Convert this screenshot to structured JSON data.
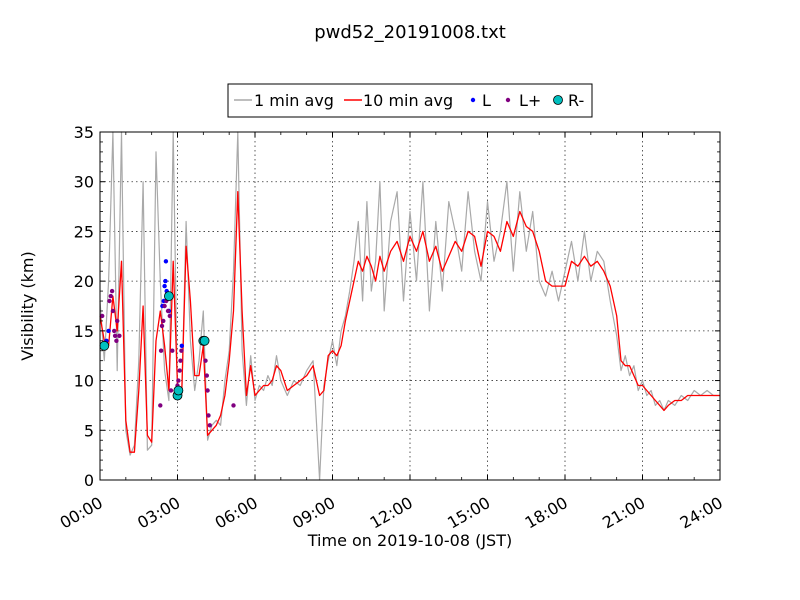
{
  "chart_data": {
    "type": "line",
    "title": "pwd52_20191008.txt",
    "xlabel": "Time on 2019-10-08 (JST)",
    "ylabel": "Visibility (km)",
    "xlim": [
      "00:00",
      "24:00"
    ],
    "ylim": [
      0,
      35
    ],
    "x_ticks": [
      "00:00",
      "03:00",
      "06:00",
      "09:00",
      "12:00",
      "15:00",
      "18:00",
      "21:00",
      "24:00"
    ],
    "y_ticks": [
      "0",
      "5",
      "10",
      "15",
      "20",
      "25",
      "30",
      "35"
    ],
    "grid": true,
    "legend_position": "top-center",
    "legend": [
      {
        "label": "1 min avg",
        "color": "#a9a9a9",
        "marker": "line"
      },
      {
        "label": "10 min avg",
        "color": "#ff0000",
        "marker": "line"
      },
      {
        "label": "L",
        "color": "#0000ff",
        "marker": "dot"
      },
      {
        "label": "L+",
        "color": "#800080",
        "marker": "dot"
      },
      {
        "label": "R-",
        "color": "#00bfbf",
        "marker": "circle"
      }
    ],
    "series": [
      {
        "name": "10 min avg",
        "color": "#ff0000",
        "x": [
          "00:00",
          "00:10",
          "00:20",
          "00:30",
          "00:40",
          "00:50",
          "01:00",
          "01:10",
          "01:20",
          "01:30",
          "01:40",
          "01:50",
          "02:00",
          "02:10",
          "02:20",
          "02:30",
          "02:40",
          "02:50",
          "03:00",
          "03:10",
          "03:20",
          "03:30",
          "03:40",
          "03:50",
          "04:00",
          "04:10",
          "04:20",
          "04:30",
          "04:40",
          "04:50",
          "05:00",
          "05:10",
          "05:20",
          "05:30",
          "05:40",
          "05:50",
          "06:00",
          "06:10",
          "06:20",
          "06:30",
          "06:40",
          "06:50",
          "07:00",
          "07:15",
          "07:30",
          "07:45",
          "08:00",
          "08:15",
          "08:30",
          "08:40",
          "08:50",
          "09:00",
          "09:10",
          "09:20",
          "09:30",
          "09:40",
          "09:50",
          "10:00",
          "10:10",
          "10:20",
          "10:30",
          "10:40",
          "10:50",
          "11:00",
          "11:15",
          "11:30",
          "11:45",
          "12:00",
          "12:15",
          "12:30",
          "12:45",
          "13:00",
          "13:15",
          "13:30",
          "13:45",
          "14:00",
          "14:15",
          "14:30",
          "14:45",
          "15:00",
          "15:15",
          "15:30",
          "15:45",
          "16:00",
          "16:15",
          "16:30",
          "16:45",
          "17:00",
          "17:15",
          "17:30",
          "17:45",
          "18:00",
          "18:15",
          "18:30",
          "18:45",
          "19:00",
          "19:15",
          "19:30",
          "19:45",
          "20:00",
          "20:10",
          "20:20",
          "20:30",
          "20:40",
          "20:50",
          "21:00",
          "21:10",
          "21:20",
          "21:30",
          "21:40",
          "21:50",
          "22:00",
          "22:15",
          "22:30",
          "22:45",
          "23:00",
          "23:15",
          "23:30",
          "23:45",
          "24:00"
        ],
        "y": [
          16.5,
          14.0,
          13.5,
          18.5,
          15.0,
          22.0,
          6.0,
          2.8,
          2.8,
          9.0,
          17.5,
          4.5,
          3.8,
          14.0,
          17.0,
          13.5,
          9.0,
          22.0,
          9.5,
          9.0,
          23.5,
          18.0,
          10.5,
          10.5,
          13.5,
          4.5,
          5.0,
          5.5,
          6.5,
          8.5,
          12.0,
          17.0,
          29.0,
          17.0,
          8.5,
          11.5,
          8.5,
          9.0,
          9.5,
          9.5,
          10.0,
          11.5,
          11.0,
          9.0,
          9.5,
          10.0,
          10.5,
          11.5,
          8.5,
          9.0,
          12.5,
          13.0,
          12.5,
          13.5,
          16.0,
          18.0,
          20.0,
          22.0,
          21.0,
          22.5,
          21.5,
          20.0,
          22.5,
          21.0,
          23.0,
          24.0,
          22.0,
          24.5,
          23.0,
          25.0,
          22.0,
          23.5,
          21.0,
          22.5,
          24.0,
          23.0,
          25.0,
          24.5,
          21.5,
          25.0,
          24.5,
          23.0,
          26.0,
          24.5,
          27.0,
          25.5,
          25.0,
          23.0,
          20.0,
          19.5,
          19.5,
          19.5,
          22.0,
          21.5,
          22.5,
          21.5,
          22.0,
          21.0,
          19.5,
          16.5,
          12.0,
          11.5,
          11.5,
          10.5,
          9.5,
          9.5,
          9.0,
          8.5,
          8.0,
          7.5,
          7.0,
          7.5,
          8.0,
          8.0,
          8.5,
          8.5,
          8.5,
          8.5,
          8.5,
          8.5
        ]
      },
      {
        "name": "1 min avg",
        "color": "#a9a9a9",
        "x": [
          "00:00",
          "00:10",
          "00:20",
          "00:30",
          "00:40",
          "00:50",
          "01:00",
          "01:10",
          "01:20",
          "01:30",
          "01:40",
          "01:50",
          "02:00",
          "02:10",
          "02:20",
          "02:30",
          "02:40",
          "02:50",
          "03:00",
          "03:10",
          "03:20",
          "03:30",
          "03:40",
          "03:50",
          "04:00",
          "04:10",
          "04:20",
          "04:30",
          "04:40",
          "04:50",
          "05:00",
          "05:10",
          "05:20",
          "05:30",
          "05:40",
          "05:50",
          "06:00",
          "06:10",
          "06:20",
          "06:30",
          "06:40",
          "06:50",
          "07:00",
          "07:15",
          "07:30",
          "07:45",
          "08:00",
          "08:15",
          "08:30",
          "08:40",
          "08:50",
          "09:00",
          "09:10",
          "09:20",
          "09:30",
          "09:40",
          "09:50",
          "10:00",
          "10:10",
          "10:20",
          "10:30",
          "10:40",
          "10:50",
          "11:00",
          "11:15",
          "11:30",
          "11:45",
          "12:00",
          "12:15",
          "12:30",
          "12:45",
          "13:00",
          "13:15",
          "13:30",
          "13:45",
          "14:00",
          "14:15",
          "14:30",
          "14:45",
          "15:00",
          "15:15",
          "15:30",
          "15:45",
          "16:00",
          "16:15",
          "16:30",
          "16:45",
          "17:00",
          "17:15",
          "17:30",
          "17:45",
          "18:00",
          "18:15",
          "18:30",
          "18:45",
          "19:00",
          "19:15",
          "19:30",
          "19:45",
          "20:00",
          "20:10",
          "20:20",
          "20:30",
          "20:40",
          "20:50",
          "21:00",
          "21:10",
          "21:20",
          "21:30",
          "21:40",
          "21:50",
          "22:00",
          "22:15",
          "22:30",
          "22:45",
          "23:00",
          "23:15",
          "23:30",
          "23:45",
          "24:00"
        ],
        "y": [
          18.0,
          12.0,
          20.0,
          35.0,
          11.0,
          35.0,
          5.0,
          2.5,
          3.5,
          12.0,
          30.0,
          3.0,
          3.5,
          33.0,
          20.0,
          11.0,
          8.0,
          35.0,
          8.0,
          8.5,
          26.0,
          14.0,
          9.0,
          12.0,
          17.0,
          4.0,
          5.5,
          6.0,
          5.5,
          10.0,
          13.0,
          21.0,
          35.0,
          13.0,
          7.5,
          12.5,
          8.0,
          9.5,
          9.0,
          10.5,
          9.5,
          12.5,
          10.0,
          8.5,
          10.0,
          9.5,
          11.0,
          12.0,
          0.0,
          9.5,
          12.0,
          14.0,
          11.5,
          15.0,
          16.5,
          19.0,
          22.0,
          26.0,
          18.0,
          28.0,
          19.0,
          22.0,
          30.0,
          17.0,
          26.0,
          29.0,
          18.0,
          27.0,
          20.0,
          30.0,
          17.0,
          26.0,
          19.0,
          28.0,
          25.0,
          21.0,
          29.0,
          23.0,
          20.0,
          28.0,
          22.0,
          25.0,
          30.0,
          21.0,
          29.0,
          23.0,
          27.0,
          20.0,
          18.5,
          21.0,
          18.0,
          21.0,
          24.0,
          20.0,
          25.0,
          20.0,
          23.0,
          22.0,
          18.0,
          14.5,
          11.0,
          12.5,
          10.5,
          11.5,
          9.0,
          10.0,
          8.5,
          9.0,
          7.5,
          8.0,
          7.0,
          8.0,
          7.5,
          8.5,
          8.0,
          9.0,
          8.5,
          9.0,
          8.5,
          8.5
        ]
      }
    ],
    "markers": [
      {
        "name": "L",
        "color": "#0000ff",
        "x": [
          "00:15",
          "00:20",
          "02:25",
          "02:28",
          "02:30",
          "02:32",
          "02:33",
          "02:35",
          "02:37",
          "02:40",
          "03:10"
        ],
        "y": [
          14.0,
          15.0,
          17.5,
          18.0,
          19.5,
          20.0,
          22.0,
          19.0,
          18.5,
          17.0,
          13.5
        ]
      },
      {
        "name": "L+",
        "color": "#800080",
        "x": [
          "00:05",
          "00:15",
          "00:22",
          "00:25",
          "00:28",
          "00:30",
          "00:33",
          "00:35",
          "00:38",
          "00:40",
          "00:45",
          "02:20",
          "02:22",
          "02:24",
          "02:27",
          "02:30",
          "02:34",
          "02:38",
          "02:42",
          "02:45",
          "02:48",
          "02:55",
          "03:00",
          "03:02",
          "03:05",
          "03:07",
          "03:09",
          "04:05",
          "04:08",
          "04:10",
          "04:12",
          "04:15",
          "05:10"
        ],
        "y": [
          16.5,
          13.5,
          18.0,
          18.5,
          19.0,
          17.0,
          15.0,
          14.5,
          14.0,
          16.0,
          14.5,
          7.5,
          13.0,
          15.5,
          16.0,
          17.5,
          18.0,
          17.0,
          16.5,
          9.0,
          13.0,
          8.5,
          9.5,
          10.0,
          11.0,
          12.0,
          13.0,
          12.0,
          10.5,
          9.0,
          6.5,
          5.5,
          7.5
        ]
      },
      {
        "name": "R-",
        "color": "#00bfbf",
        "x": [
          "00:10",
          "02:40",
          "03:00",
          "03:02",
          "04:00",
          "04:03"
        ],
        "y": [
          13.5,
          18.5,
          8.5,
          9.0,
          14.0,
          14.0
        ]
      }
    ]
  }
}
